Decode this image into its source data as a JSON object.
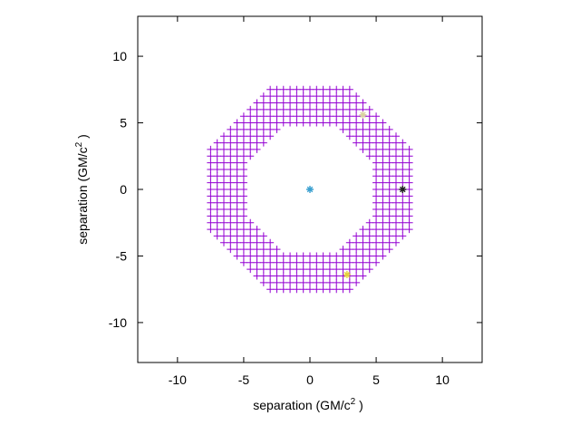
{
  "chart_data": {
    "type": "scatter",
    "title": "",
    "xlabel": {
      "main": "separation (GM/c",
      "sup": "2",
      "tail": " )"
    },
    "ylabel": {
      "main": "separation (GM/c",
      "sup": "2",
      "tail": " )"
    },
    "xlim": [
      -13,
      13
    ],
    "ylim": [
      -13,
      13
    ],
    "xticks": [
      -10,
      -5,
      0,
      5,
      10
    ],
    "yticks": [
      -10,
      -5,
      0,
      5,
      10
    ],
    "x_tick_labels": [
      "-10",
      "-5",
      "0",
      "5",
      "10"
    ],
    "y_tick_labels": [
      "-10",
      "-5",
      "0",
      "5",
      "10"
    ],
    "grid": false,
    "legend": "none",
    "grid_region": {
      "shape": "annulus (octagonal)",
      "r_inner": 4.6,
      "r_outer": 7.6,
      "spacing": 0.5,
      "marker": "plus",
      "color": "#9400d3"
    },
    "points": [
      {
        "label": "center",
        "x": 0,
        "y": 0,
        "marker": "asterisk",
        "color": "#3aa0d0"
      },
      {
        "label": "black-star",
        "x": 7.0,
        "y": 0,
        "marker": "asterisk",
        "color": "#222222"
      },
      {
        "label": "yellow-star",
        "x": 2.8,
        "y": -6.4,
        "marker": "asterisk",
        "color": "#e6d23a"
      },
      {
        "label": "faint-star",
        "x": 4.0,
        "y": 5.6,
        "marker": "asterisk",
        "color": "#d9d3a0"
      }
    ]
  }
}
